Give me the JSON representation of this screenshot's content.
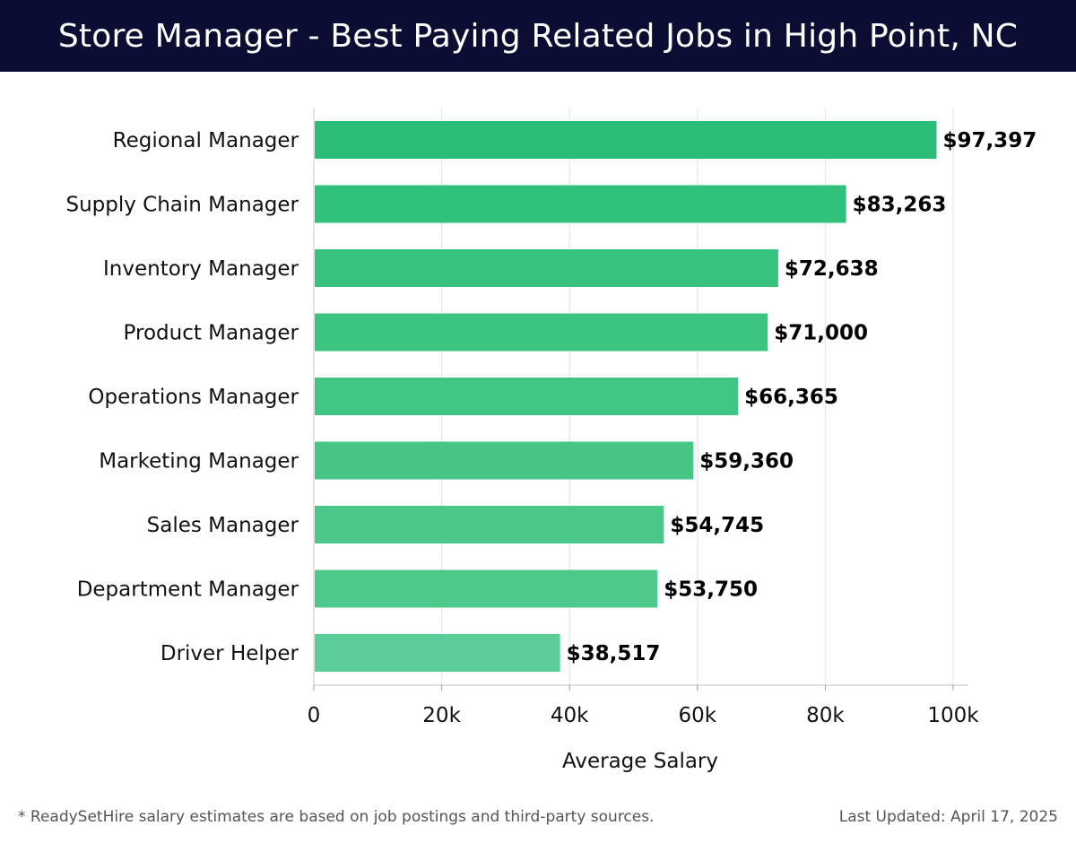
{
  "header": {
    "title": "Store Manager - Best Paying Related Jobs in High Point, NC"
  },
  "chart_data": {
    "type": "bar",
    "orientation": "horizontal",
    "title": "Store Manager - Best Paying Related Jobs in High Point, NC",
    "xlabel": "Average Salary",
    "ylabel": "",
    "xlim": [
      0,
      100000
    ],
    "xticks": [
      0,
      20000,
      40000,
      60000,
      80000,
      100000
    ],
    "xtick_labels": [
      "0",
      "20k",
      "40k",
      "60k",
      "80k",
      "100k"
    ],
    "grid": "vertical",
    "categories": [
      "Regional Manager",
      "Supply Chain Manager",
      "Inventory Manager",
      "Product Manager",
      "Operations Manager",
      "Marketing Manager",
      "Sales Manager",
      "Department Manager",
      "Driver Helper"
    ],
    "values": [
      97397,
      83263,
      72638,
      71000,
      66365,
      59360,
      54745,
      53750,
      38517
    ],
    "value_labels": [
      "$97,397",
      "$83,263",
      "$72,638",
      "$71,000",
      "$66,365",
      "$59,360",
      "$54,745",
      "$53,750",
      "$38,517"
    ],
    "bar_colors": [
      "#2abd77",
      "#2fc07a",
      "#36c27e",
      "#3cc481",
      "#41c584",
      "#45c687",
      "#4ac889",
      "#4ec98c",
      "#5ccd96"
    ]
  },
  "footer": {
    "note": "* ReadySetHire salary estimates are based on job postings and third-party sources.",
    "updated": "Last Updated: April 17, 2025"
  }
}
